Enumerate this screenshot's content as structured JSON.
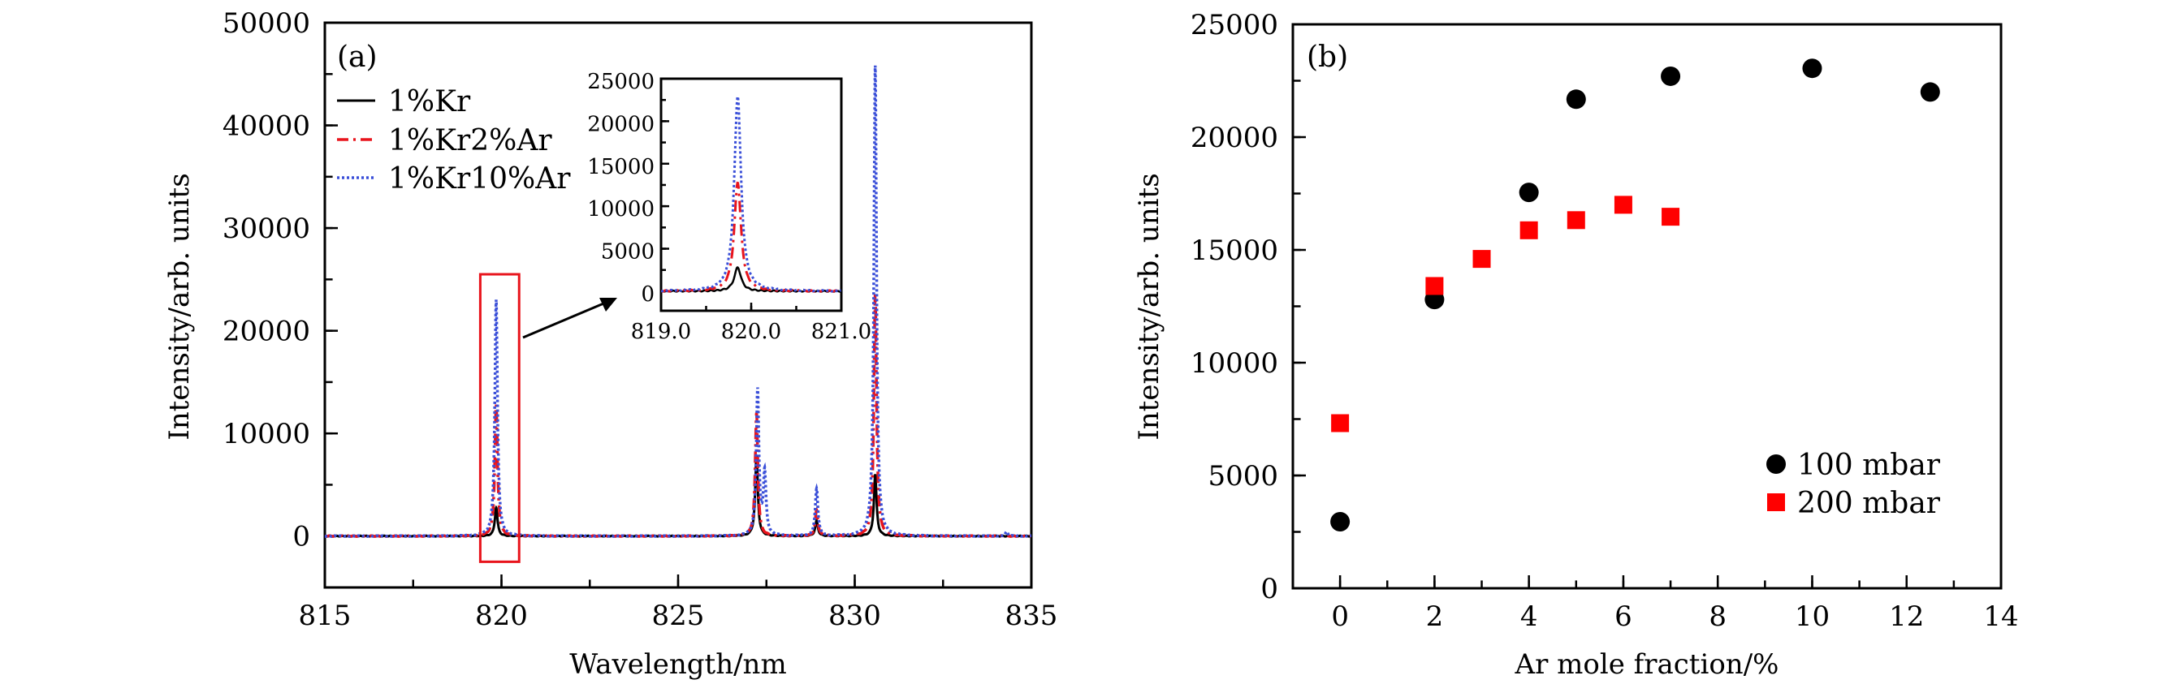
{
  "chart_data": [
    {
      "type": "line",
      "panel_label": "(a)",
      "xlabel": "Wavelength/nm",
      "ylabel": "Intensity/arb. units",
      "xlim": [
        815,
        835
      ],
      "ylim": [
        -5000,
        50000
      ],
      "xticks": [
        "815",
        "820",
        "825",
        "830",
        "835"
      ],
      "yticks": [
        "0",
        "10000",
        "20000",
        "30000",
        "40000",
        "50000"
      ],
      "legend_position": "top-left",
      "series": [
        {
          "name": "1%Kr",
          "color": "#000000",
          "style": "solid",
          "peaks": [
            [
              819.85,
              2800
            ],
            [
              827.22,
              7800
            ],
            [
              828.92,
              1500
            ],
            [
              830.58,
              6000
            ]
          ]
        },
        {
          "name": "1%Kr2%Ar",
          "color": "#e8141c",
          "style": "dashdot",
          "peaks": [
            [
              819.85,
              12800
            ],
            [
              827.22,
              12000
            ],
            [
              828.92,
              2500
            ],
            [
              830.58,
              23500
            ]
          ]
        },
        {
          "name": "1%Kr10%Ar",
          "color": "#3a4fd8",
          "style": "dotted",
          "peaks": [
            [
              819.85,
              23000
            ],
            [
              827.25,
              14200
            ],
            [
              827.45,
              6000
            ],
            [
              828.92,
              4600
            ],
            [
              830.58,
              45800
            ],
            [
              834.3,
              400
            ]
          ]
        }
      ],
      "highlight_box": {
        "xrange": [
          819.4,
          820.5
        ],
        "yrange": [
          -2500,
          25500
        ],
        "color": "#e8141c"
      },
      "inset": {
        "xlim": [
          819.0,
          821.0
        ],
        "ylim": [
          -2300,
          25000
        ],
        "xticks": [
          "819.0",
          "820.0",
          "821.0"
        ],
        "yticks": [
          "0",
          "5000",
          "10000",
          "15000",
          "20000",
          "25000"
        ]
      }
    },
    {
      "type": "scatter",
      "panel_label": "(b)",
      "xlabel": "Ar mole fraction/%",
      "ylabel": "Intensity/arb. units",
      "xlim": [
        -1,
        14
      ],
      "ylim": [
        0,
        25000
      ],
      "xticks": [
        "0",
        "2",
        "4",
        "6",
        "8",
        "10",
        "12",
        "14"
      ],
      "yticks": [
        "0",
        "5000",
        "10000",
        "15000",
        "20000",
        "25000"
      ],
      "legend_position": "bottom-right",
      "series": [
        {
          "name": "100 mbar",
          "marker": "circle",
          "color": "#000000",
          "x": [
            0,
            2,
            4,
            5,
            7,
            10,
            12.5
          ],
          "y": [
            2950,
            12800,
            17550,
            21680,
            22700,
            23050,
            22000
          ]
        },
        {
          "name": "200 mbar",
          "marker": "square",
          "color": "#ff0000",
          "x": [
            0,
            2,
            3,
            4,
            5,
            6,
            7
          ],
          "y": [
            7320,
            13400,
            14600,
            15870,
            16320,
            17000,
            16470
          ]
        }
      ]
    }
  ]
}
